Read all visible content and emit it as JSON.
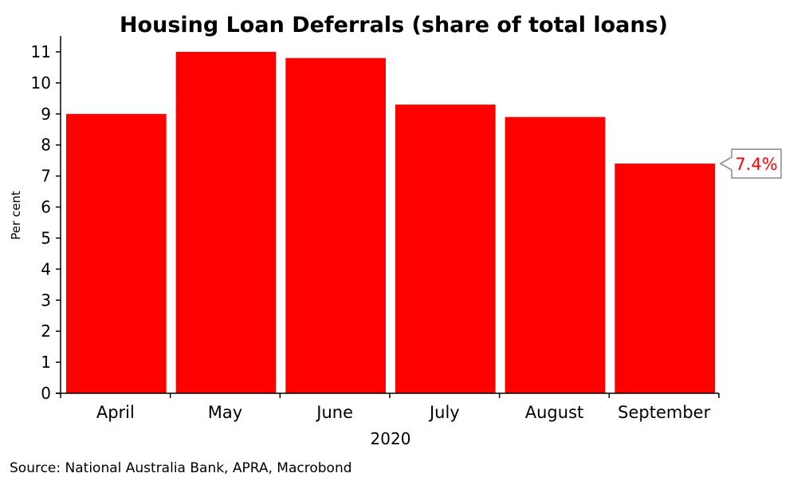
{
  "chart_data": {
    "type": "bar",
    "title": "Housing Loan Deferrals (share of total loans)",
    "xlabel": "2020",
    "ylabel": "Per cent",
    "categories": [
      "April",
      "May",
      "June",
      "July",
      "August",
      "September"
    ],
    "values": [
      9.0,
      11.0,
      10.8,
      9.3,
      8.9,
      7.4
    ],
    "ylim": [
      0,
      11
    ],
    "yticks": [
      "0",
      "1",
      "2",
      "3",
      "4",
      "5",
      "6",
      "7",
      "8",
      "9",
      "10",
      "11"
    ],
    "grid": false,
    "legend": "none",
    "annotation": "7.4%",
    "colors": {
      "bar": "#ff0000",
      "callout_text": "#ff0000",
      "callout_border": "#888888",
      "axis": "#000000"
    }
  },
  "source": "Source: National Australia Bank, APRA, Macrobond"
}
